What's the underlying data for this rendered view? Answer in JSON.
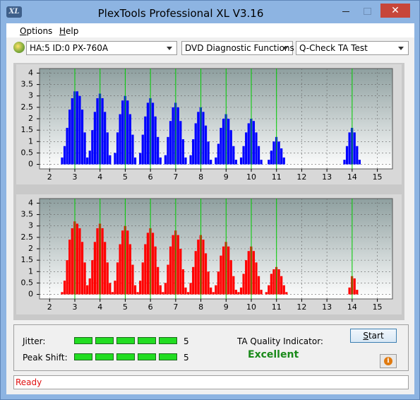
{
  "window": {
    "title": "PlexTools Professional XL V3.16",
    "icon_text": "XL"
  },
  "menu": [
    "Options",
    "Help"
  ],
  "toolbar": {
    "drive": "HA:5 ID:0  PX-760A",
    "function": "DVD Diagnostic Functions",
    "test": "Q-Check TA Test"
  },
  "charts": [
    {
      "type": "bar",
      "color": "#0000ff",
      "marker_color": "#00cc00",
      "grid": true,
      "xlim": [
        1.6,
        15.6
      ],
      "ylim": [
        -0.2,
        4.2
      ],
      "xticks": [
        2,
        3,
        4,
        5,
        6,
        7,
        8,
        9,
        10,
        11,
        12,
        13,
        14,
        15
      ],
      "yticks": [
        0,
        0.5,
        1,
        1.5,
        2,
        2.5,
        3,
        3.5,
        4
      ],
      "markers": [
        3,
        4,
        5,
        6,
        7,
        8,
        9,
        10,
        11,
        14
      ],
      "x": [
        2.5,
        2.6,
        2.7,
        2.8,
        2.9,
        3.0,
        3.1,
        3.2,
        3.3,
        3.4,
        3.5,
        3.6,
        3.7,
        3.8,
        3.9,
        4.0,
        4.1,
        4.2,
        4.3,
        4.4,
        4.5,
        4.6,
        4.7,
        4.8,
        4.9,
        5.0,
        5.1,
        5.2,
        5.3,
        5.4,
        5.5,
        5.6,
        5.7,
        5.8,
        5.9,
        6.0,
        6.1,
        6.2,
        6.3,
        6.4,
        6.5,
        6.6,
        6.7,
        6.8,
        6.9,
        7.0,
        7.1,
        7.2,
        7.3,
        7.4,
        7.5,
        7.6,
        7.7,
        7.8,
        7.9,
        8.0,
        8.1,
        8.2,
        8.3,
        8.4,
        8.5,
        8.6,
        8.7,
        8.8,
        8.9,
        9.0,
        9.1,
        9.2,
        9.3,
        9.4,
        9.5,
        9.6,
        9.7,
        9.8,
        9.9,
        10.0,
        10.1,
        10.2,
        10.3,
        10.4,
        10.5,
        10.6,
        10.7,
        10.8,
        10.9,
        11.0,
        11.1,
        11.2,
        11.3,
        11.4,
        11.5,
        11.6,
        11.7,
        11.8,
        11.9,
        12.0,
        12.1,
        12.2,
        12.3,
        12.4,
        12.5,
        12.6,
        12.7,
        12.8,
        12.9,
        13.0,
        13.1,
        13.2,
        13.3,
        13.4,
        13.5,
        13.6,
        13.7,
        13.8,
        13.9,
        14.0,
        14.1,
        14.2,
        14.3,
        14.4,
        14.5
      ],
      "values": [
        0.3,
        0.8,
        1.6,
        2.4,
        2.9,
        3.2,
        3.2,
        3.0,
        2.4,
        1.4,
        0.3,
        0.6,
        1.5,
        2.3,
        2.9,
        3.1,
        2.9,
        2.3,
        1.4,
        0.4,
        0,
        0.5,
        1.4,
        2.2,
        2.8,
        3.0,
        2.8,
        2.2,
        1.3,
        0.3,
        0,
        0.5,
        1.3,
        2.1,
        2.7,
        2.9,
        2.7,
        2.1,
        1.2,
        0.3,
        0,
        0.4,
        1.2,
        1.9,
        2.5,
        2.7,
        2.5,
        1.9,
        1.1,
        0.3,
        0,
        0.4,
        1.1,
        1.8,
        2.3,
        2.5,
        2.3,
        1.7,
        1.0,
        0.2,
        0,
        0.3,
        0.9,
        1.6,
        2.0,
        2.2,
        2.0,
        1.5,
        0.8,
        0.2,
        0,
        0.3,
        0.8,
        1.4,
        1.8,
        2.0,
        1.9,
        1.4,
        0.8,
        0.2,
        0,
        0,
        0.2,
        0.6,
        1.0,
        1.2,
        1.0,
        0.7,
        0.3,
        0,
        0,
        0,
        0,
        0,
        0,
        0,
        0,
        0,
        0,
        0,
        0,
        0,
        0,
        0,
        0,
        0,
        0,
        0,
        0,
        0,
        0,
        0,
        0.2,
        0.8,
        1.4,
        1.6,
        1.4,
        0.8,
        0.2,
        0,
        0
      ]
    },
    {
      "type": "bar",
      "color": "#ff0000",
      "marker_color": "#00cc00",
      "grid": true,
      "xlim": [
        1.6,
        15.6
      ],
      "ylim": [
        -0.2,
        4.2
      ],
      "xticks": [
        2,
        3,
        4,
        5,
        6,
        7,
        8,
        9,
        10,
        11,
        12,
        13,
        14,
        15
      ],
      "yticks": [
        0,
        0.5,
        1,
        1.5,
        2,
        2.5,
        3,
        3.5,
        4
      ],
      "markers": [
        3,
        4,
        5,
        6,
        7,
        8,
        9,
        10,
        11,
        14
      ],
      "x": [
        2.5,
        2.6,
        2.7,
        2.8,
        2.9,
        3.0,
        3.1,
        3.2,
        3.3,
        3.4,
        3.5,
        3.6,
        3.7,
        3.8,
        3.9,
        4.0,
        4.1,
        4.2,
        4.3,
        4.4,
        4.5,
        4.6,
        4.7,
        4.8,
        4.9,
        5.0,
        5.1,
        5.2,
        5.3,
        5.4,
        5.5,
        5.6,
        5.7,
        5.8,
        5.9,
        6.0,
        6.1,
        6.2,
        6.3,
        6.4,
        6.5,
        6.6,
        6.7,
        6.8,
        6.9,
        7.0,
        7.1,
        7.2,
        7.3,
        7.4,
        7.5,
        7.6,
        7.7,
        7.8,
        7.9,
        8.0,
        8.1,
        8.2,
        8.3,
        8.4,
        8.5,
        8.6,
        8.7,
        8.8,
        8.9,
        9.0,
        9.1,
        9.2,
        9.3,
        9.4,
        9.5,
        9.6,
        9.7,
        9.8,
        9.9,
        10.0,
        10.1,
        10.2,
        10.3,
        10.4,
        10.5,
        10.6,
        10.7,
        10.8,
        10.9,
        11.0,
        11.1,
        11.2,
        11.3,
        11.4,
        11.5,
        11.6,
        11.7,
        11.8,
        11.9,
        12.0,
        12.1,
        12.2,
        12.3,
        12.4,
        12.5,
        12.6,
        12.7,
        12.8,
        12.9,
        13.0,
        13.1,
        13.2,
        13.3,
        13.4,
        13.5,
        13.6,
        13.7,
        13.8,
        13.9,
        14.0,
        14.1,
        14.2,
        14.3,
        14.4,
        14.5
      ],
      "values": [
        0.1,
        0.6,
        1.5,
        2.4,
        2.9,
        3.2,
        3.1,
        2.9,
        2.3,
        1.4,
        0.4,
        0.7,
        1.5,
        2.3,
        2.9,
        3.1,
        2.9,
        2.3,
        1.4,
        0.5,
        0.1,
        0.6,
        1.4,
        2.2,
        2.8,
        3.0,
        2.8,
        2.2,
        1.3,
        0.4,
        0.1,
        0.6,
        1.4,
        2.2,
        2.7,
        2.9,
        2.7,
        2.1,
        1.2,
        0.4,
        0.1,
        0.5,
        1.3,
        2.1,
        2.6,
        2.8,
        2.6,
        2.0,
        1.1,
        0.3,
        0.1,
        0.5,
        1.2,
        1.9,
        2.4,
        2.6,
        2.4,
        1.8,
        1.0,
        0.3,
        0.1,
        0.4,
        1.0,
        1.7,
        2.1,
        2.3,
        2.1,
        1.5,
        0.8,
        0.2,
        0.1,
        0.3,
        0.9,
        1.5,
        1.9,
        2.1,
        1.9,
        1.4,
        0.8,
        0.2,
        0,
        0.1,
        0.4,
        0.9,
        1.1,
        1.2,
        1.1,
        0.8,
        0.4,
        0.1,
        0,
        0,
        0,
        0,
        0,
        0,
        0,
        0,
        0,
        0,
        0,
        0,
        0,
        0,
        0,
        0,
        0,
        0,
        0,
        0,
        0,
        0,
        0,
        0,
        0.3,
        0.8,
        0.7,
        0.2,
        0,
        0,
        0
      ]
    }
  ],
  "results": {
    "jitter": {
      "label": "Jitter:",
      "value": 5
    },
    "peak_shift": {
      "label": "Peak Shift:",
      "value": 5
    },
    "ta_quality": {
      "label": "TA Quality Indicator:",
      "value": "Excellent"
    }
  },
  "buttons": {
    "start": "Start"
  },
  "status": "Ready"
}
